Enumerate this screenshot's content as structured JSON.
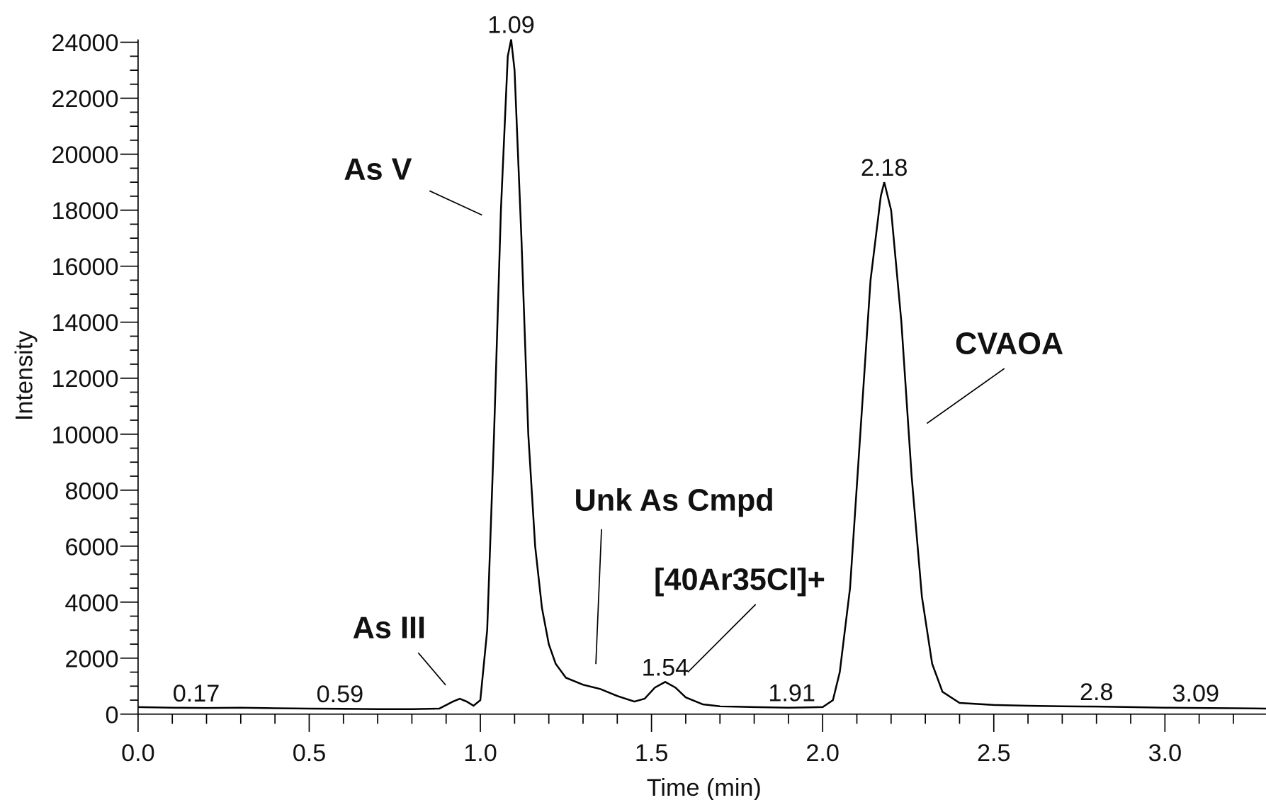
{
  "chart_data": {
    "type": "line",
    "x_label": "Time (min)",
    "y_label": "Intensity",
    "color": "#000000",
    "xlim": [
      0,
      3.3
    ],
    "ylim": [
      0,
      24100
    ],
    "xticks": [
      {
        "value": 0,
        "label": "0.0"
      },
      0.5,
      {
        "value": 1,
        "label": "1.0"
      },
      1.5,
      {
        "value": 2,
        "label": "2.0"
      },
      2.5,
      {
        "value": 3,
        "label": "3.0"
      }
    ],
    "xminorticks": [
      0.1,
      0.2,
      0.3,
      0.4,
      0.6,
      0.7,
      0.8,
      0.9,
      1.1,
      1.2,
      1.3,
      1.4,
      1.6,
      1.7,
      1.8,
      1.9,
      2.1,
      2.2,
      2.3,
      2.4,
      2.6,
      2.7,
      2.8,
      2.9,
      3.1,
      3.2
    ],
    "yticks": [
      0,
      2000,
      4000,
      6000,
      8000,
      10000,
      12000,
      14000,
      16000,
      18000,
      20000,
      22000,
      24000
    ],
    "yminorticks": [
      500,
      1000,
      1500,
      2500,
      3000,
      3500,
      4500,
      5000,
      5500,
      6500,
      7000,
      7500,
      8500,
      9000,
      9500,
      10500,
      11000,
      11500,
      12500,
      13000,
      13500,
      14500,
      15000,
      15500,
      16500,
      17000,
      17500,
      18500,
      19000,
      19500,
      20500,
      21000,
      21500,
      22500,
      23000,
      23500
    ],
    "x": [
      0,
      0.1,
      0.2,
      0.3,
      0.4,
      0.5,
      0.6,
      0.7,
      0.8,
      0.88,
      0.92,
      0.94,
      0.96,
      0.98,
      1.0,
      1.02,
      1.04,
      1.06,
      1.08,
      1.09,
      1.1,
      1.12,
      1.14,
      1.16,
      1.18,
      1.2,
      1.22,
      1.25,
      1.3,
      1.35,
      1.4,
      1.45,
      1.48,
      1.51,
      1.54,
      1.57,
      1.6,
      1.65,
      1.7,
      1.8,
      1.9,
      2.0,
      2.03,
      2.05,
      2.08,
      2.11,
      2.14,
      2.17,
      2.18,
      2.2,
      2.23,
      2.26,
      2.29,
      2.32,
      2.35,
      2.4,
      2.5,
      2.6,
      2.7,
      2.8,
      2.9,
      3.0,
      3.1,
      3.2,
      3.3
    ],
    "values": [
      250,
      230,
      220,
      230,
      210,
      200,
      190,
      180,
      180,
      200,
      450,
      550,
      450,
      300,
      500,
      3000,
      10000,
      18000,
      23500,
      24100,
      23000,
      17000,
      10000,
      6000,
      3800,
      2500,
      1800,
      1300,
      1050,
      900,
      650,
      450,
      550,
      950,
      1150,
      950,
      600,
      350,
      280,
      250,
      230,
      250,
      500,
      1500,
      4500,
      10000,
      15500,
      18500,
      19000,
      18000,
      14000,
      8500,
      4200,
      1800,
      800,
      400,
      330,
      300,
      280,
      270,
      250,
      230,
      220,
      210,
      200
    ],
    "peak_labels": [
      {
        "x": 0.17
      },
      {
        "x": 0.59
      },
      {
        "x": 1.09
      },
      {
        "x": 1.54
      },
      {
        "x": 1.91
      },
      {
        "x": 2.18
      },
      {
        "x": 2.8
      },
      {
        "x": 3.09
      }
    ],
    "annotations": [
      "As V",
      "As III",
      "Unk As Cmpd",
      "[40Ar35Cl]+",
      "CVAOA"
    ]
  }
}
